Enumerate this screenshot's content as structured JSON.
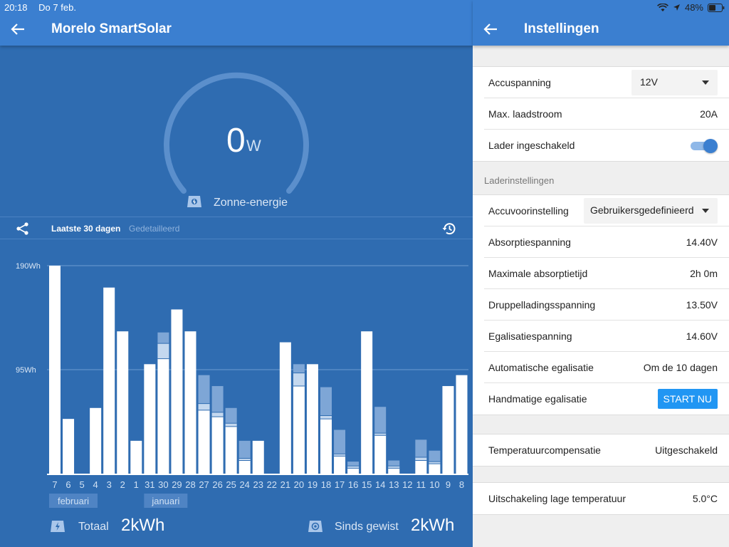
{
  "statusbar": {
    "time": "20:18",
    "date": "Do 7 feb.",
    "battery": "48%"
  },
  "left": {
    "title": "Morelo SmartSolar",
    "gauge": {
      "value": "0",
      "unit": "W",
      "label": "Zonne-energie"
    },
    "tabs": {
      "active": "Laatste 30 dagen",
      "inactive": "Gedetailleerd"
    },
    "footer": {
      "total_label": "Totaal",
      "total_value": "2kWh",
      "since_label": "Sinds gewist",
      "since_value": "2kWh"
    }
  },
  "chart_data": {
    "type": "bar",
    "ylabel": "",
    "ytick_labels": [
      "190Wh",
      "95Wh"
    ],
    "ytick_values": [
      190,
      95
    ],
    "ylim": [
      0,
      190
    ],
    "categories": [
      "7",
      "6",
      "5",
      "4",
      "3",
      "2",
      "1",
      "31",
      "30",
      "29",
      "28",
      "27",
      "26",
      "25",
      "24",
      "23",
      "22",
      "21",
      "20",
      "19",
      "18",
      "17",
      "16",
      "15",
      "14",
      "13",
      "12",
      "11",
      "10",
      "9",
      "8"
    ],
    "series": [
      {
        "values": [
          190,
          50,
          0,
          60,
          170,
          130,
          30,
          100,
          105,
          150,
          130,
          58,
          52,
          43,
          12,
          30,
          0,
          120,
          80,
          100,
          50,
          16,
          5,
          130,
          35,
          5,
          0,
          12,
          9,
          80,
          90
        ]
      },
      {
        "values": [
          0,
          0,
          0,
          0,
          0,
          0,
          0,
          0,
          14,
          0,
          0,
          6,
          4,
          3,
          2,
          0,
          0,
          0,
          12,
          0,
          3,
          2,
          2,
          0,
          2,
          2,
          0,
          3,
          2,
          0,
          0
        ]
      },
      {
        "values": [
          0,
          0,
          0,
          0,
          0,
          0,
          0,
          0,
          10,
          0,
          0,
          26,
          24,
          14,
          16,
          0,
          0,
          0,
          8,
          0,
          26,
          22,
          4,
          0,
          24,
          5,
          0,
          16,
          10,
          0,
          0
        ]
      }
    ],
    "month_labels": [
      {
        "text": "februari",
        "category": "7"
      },
      {
        "text": "januari",
        "category": "31"
      }
    ]
  },
  "right": {
    "title": "Instellingen",
    "group1": [
      {
        "label": "Accuspanning",
        "value": "12V"
      },
      {
        "label": "Max. laadstroom",
        "value": "20A"
      },
      {
        "label": "Lader ingeschakeld"
      }
    ],
    "section_header": "Laderinstellingen",
    "group2": [
      {
        "label": "Accuvoorinstelling",
        "value": "Gebruikersgedefinieerd"
      },
      {
        "label": "Absorptiespanning",
        "value": "14.40V"
      },
      {
        "label": "Maximale absorptietijd",
        "value": "2h 0m"
      },
      {
        "label": "Druppelladingsspanning",
        "value": "13.50V"
      },
      {
        "label": "Egalisatiespanning",
        "value": "14.60V"
      },
      {
        "label": "Automatische egalisatie",
        "value": "Om de 10 dagen"
      },
      {
        "label": "Handmatige egalisatie",
        "button": "START NU"
      }
    ],
    "group3": [
      {
        "label": "Temperatuurcompensatie",
        "value": "Uitgeschakeld"
      }
    ],
    "group4": [
      {
        "label": "Uitschakeling lage temperatuur",
        "value": "5.0°C"
      }
    ]
  },
  "colors": {
    "accent": "#3b7fd0",
    "background": "#2f6cb1",
    "button": "#2196f3"
  }
}
